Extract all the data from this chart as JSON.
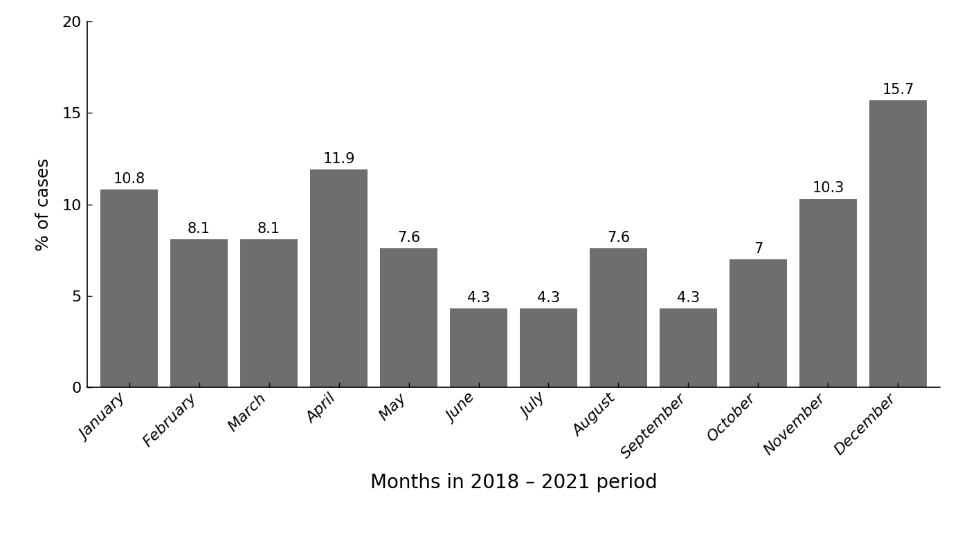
{
  "categories": [
    "January",
    "February",
    "March",
    "April",
    "May",
    "June",
    "July",
    "August",
    "September",
    "October",
    "November",
    "December"
  ],
  "values": [
    10.8,
    8.1,
    8.1,
    11.9,
    7.6,
    4.3,
    4.3,
    7.6,
    4.3,
    7.0,
    10.3,
    15.7
  ],
  "bar_color": "#6e6e6e",
  "xlabel": "Months in 2018 – 2021 period",
  "ylabel": "% of cases",
  "ylim": [
    0,
    20
  ],
  "yticks": [
    0,
    5,
    10,
    15,
    20
  ],
  "background_color": "#ffffff",
  "xlabel_fontsize": 20,
  "ylabel_fontsize": 18,
  "tick_fontsize": 16,
  "annotation_fontsize": 15,
  "bar_edge_color": "none",
  "bar_width": 0.82
}
